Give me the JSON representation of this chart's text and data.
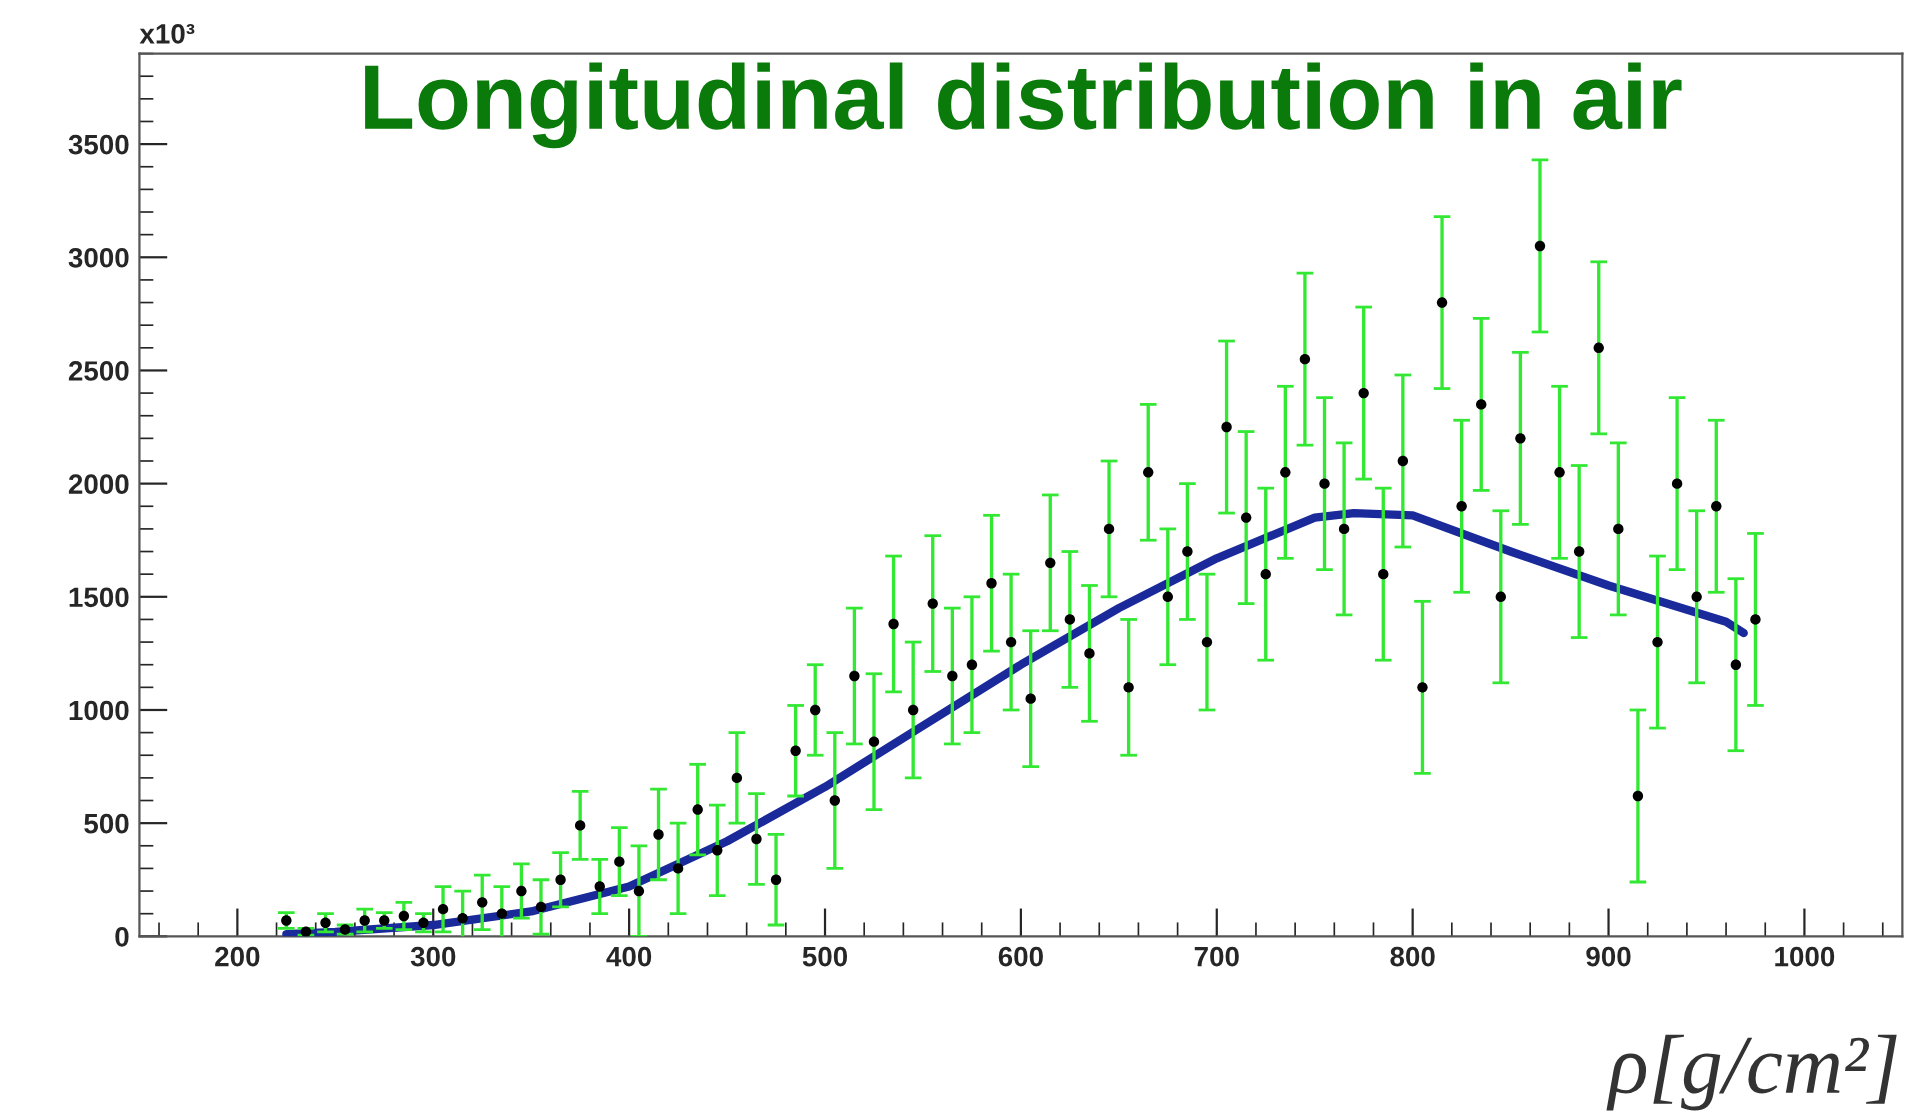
{
  "chart_data": {
    "type": "scatter",
    "title": "Longitudinal distribution in air",
    "xlabel": "ρ[g/cm²]",
    "annotations": [
      "x10³"
    ],
    "xlim": [
      150,
      1050
    ],
    "ylim": [
      0,
      3900
    ],
    "xticks": [
      200,
      300,
      400,
      500,
      600,
      700,
      800,
      900,
      1000
    ],
    "yticks": [
      0,
      500,
      1000,
      1500,
      2000,
      2500,
      3000,
      3500
    ],
    "marker": "circle",
    "series": [
      {
        "color": "#33e833",
        "colors": [
          "#000000",
          "#000000",
          "#000000",
          "#000000",
          "#000000",
          "#000000",
          "#000000",
          "#000000",
          "#000000",
          "#000000",
          "#000000",
          "#000000",
          "#000000",
          "#000000",
          "#000000",
          "#000000",
          "#000000",
          "#000000",
          "#000000",
          "#000000",
          "#000000",
          "#000000",
          "#000000",
          "#000000",
          "#000000",
          "#000000",
          "#000000",
          "#000000",
          "#000000",
          "#000000",
          "#000000",
          "#000000",
          "#000000",
          "#000000",
          "#000000",
          "#000000",
          "#000000",
          "#000000",
          "#000000",
          "#000000",
          "#000000",
          "#000000",
          "#000000",
          "#000000",
          "#000000",
          "#000000",
          "#000000",
          "#000000",
          "#000000",
          "#000000",
          "#000000",
          "#000000",
          "#000000",
          "#000000",
          "#000000",
          "#000000",
          "#000000",
          "#000000",
          "#000000",
          "#000000",
          "#000000",
          "#000000",
          "#000000",
          "#000000",
          "#000000",
          "#000000",
          "#000000",
          "#000000",
          "#000000",
          "#000000",
          "#000000",
          "#000000",
          "#000000",
          "#000000",
          "#000000",
          "#000000"
        ],
        "x": [
          225,
          235,
          245,
          255,
          265,
          275,
          285,
          295,
          305,
          315,
          325,
          335,
          345,
          355,
          365,
          375,
          385,
          395,
          405,
          415,
          425,
          435,
          445,
          455,
          465,
          475,
          485,
          495,
          505,
          515,
          525,
          535,
          545,
          555,
          565,
          575,
          585,
          595,
          605,
          615,
          625,
          635,
          645,
          655,
          665,
          675,
          685,
          695,
          705,
          715,
          725,
          735,
          745,
          755,
          765,
          775,
          785,
          795,
          805,
          815,
          825,
          835,
          845,
          855,
          865,
          875,
          885,
          895,
          905,
          915,
          925,
          935,
          945,
          955,
          965,
          975
        ],
        "values": [
          70,
          20,
          60,
          30,
          70,
          70,
          90,
          60,
          120,
          80,
          150,
          100,
          200,
          130,
          250,
          490,
          220,
          330,
          200,
          450,
          300,
          560,
          380,
          700,
          430,
          250,
          820,
          1000,
          600,
          1150,
          860,
          1380,
          1000,
          1470,
          1150,
          1200,
          1560,
          1300,
          1050,
          1650,
          1400,
          1250,
          1800,
          1100,
          2050,
          1500,
          1700,
          1300,
          2250,
          1850,
          1600,
          2050,
          2550,
          2000,
          1800,
          2400,
          1600,
          2100,
          1100,
          2800,
          1900,
          2350,
          1500,
          2200,
          3050,
          2050,
          1700,
          2600,
          1800,
          620,
          1300,
          2000,
          1500,
          1900,
          1200,
          1400
        ],
        "errors": [
          35,
          15,
          40,
          20,
          50,
          35,
          60,
          40,
          100,
          120,
          120,
          120,
          120,
          120,
          120,
          150,
          120,
          150,
          200,
          200,
          200,
          200,
          200,
          200,
          200,
          200,
          200,
          200,
          300,
          300,
          300,
          300,
          300,
          300,
          300,
          300,
          300,
          300,
          300,
          300,
          300,
          300,
          300,
          300,
          300,
          300,
          300,
          300,
          380,
          380,
          380,
          380,
          380,
          380,
          380,
          380,
          380,
          380,
          380,
          380,
          380,
          380,
          380,
          380,
          380,
          380,
          380,
          380,
          380,
          380,
          380,
          380,
          380,
          380,
          380,
          380
        ]
      },
      {
        "type": "line",
        "color": "#1a2a9a",
        "marker": "none",
        "x": [
          225,
          250,
          300,
          350,
          400,
          450,
          500,
          550,
          600,
          650,
          700,
          750,
          770,
          800,
          850,
          900,
          960,
          969
        ],
        "values": [
          10,
          20,
          50,
          110,
          220,
          420,
          660,
          930,
          1200,
          1450,
          1670,
          1850,
          1870,
          1860,
          1700,
          1550,
          1390,
          1340
        ]
      }
    ]
  }
}
